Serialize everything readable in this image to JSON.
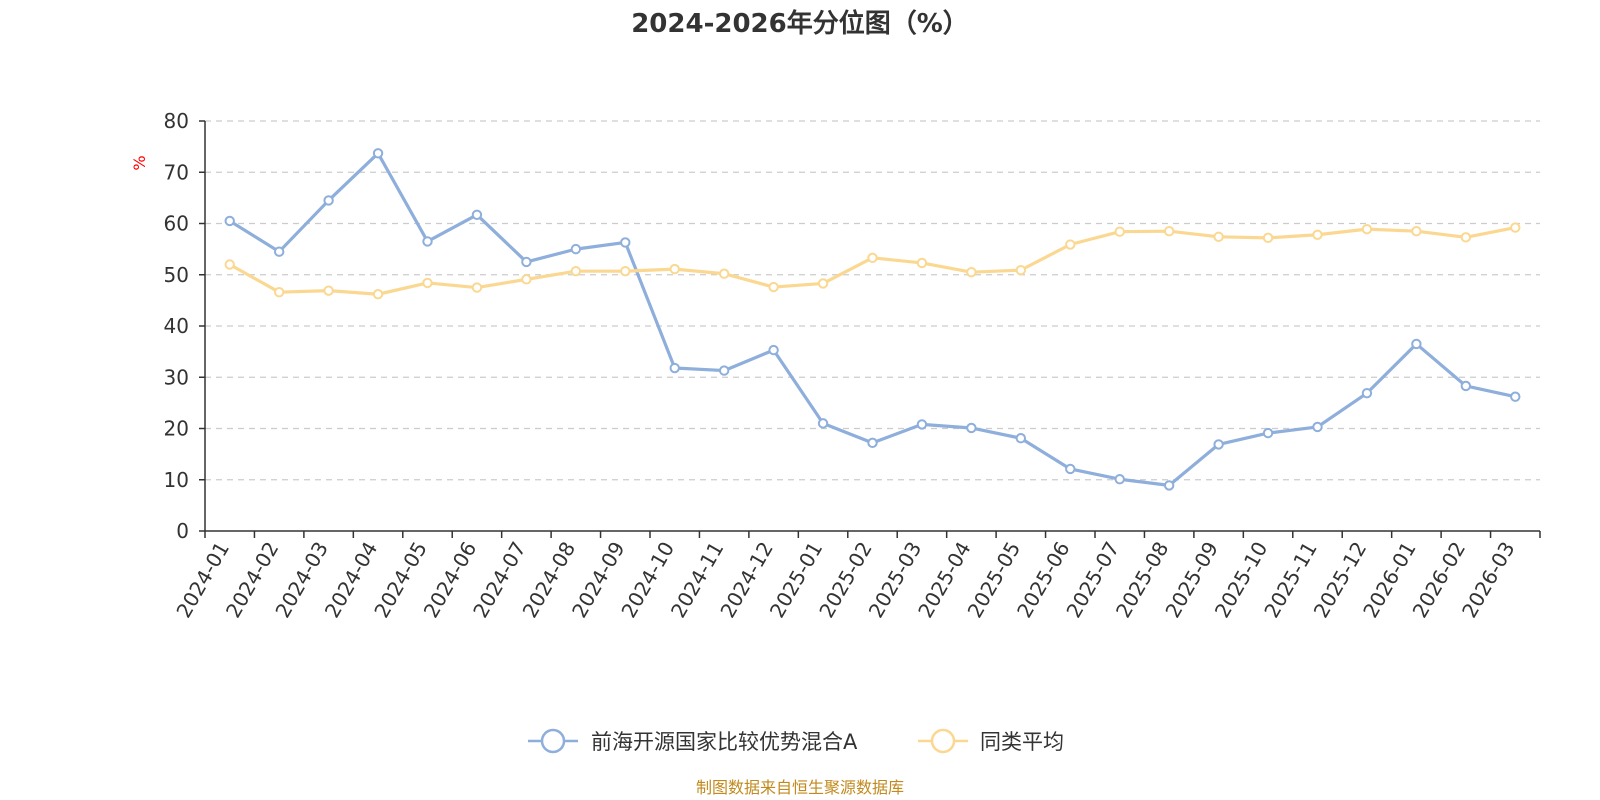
{
  "chart_data": {
    "type": "line",
    "title": "2024-2026年分位图（%）",
    "ylabel": "%",
    "xlabel": "",
    "ylim": [
      0,
      80
    ],
    "yticks": [
      0,
      10,
      20,
      30,
      40,
      50,
      60,
      70,
      80
    ],
    "grid": true,
    "legend_position": "bottom-center",
    "categories": [
      "2024-01",
      "2024-02",
      "2024-03",
      "2024-04",
      "2024-05",
      "2024-06",
      "2024-07",
      "2024-08",
      "2024-09",
      "2024-10",
      "2024-11",
      "2024-12",
      "2025-01",
      "2025-02",
      "2025-03",
      "2025-04",
      "2025-05",
      "2025-06",
      "2025-07",
      "2025-08",
      "2025-09",
      "2025-10",
      "2025-11",
      "2025-12",
      "2026-01",
      "2026-02",
      "2026-03"
    ],
    "series": [
      {
        "name": "前海开源国家比较优势混合A",
        "color": "#8eaedb",
        "values": [
          60.5,
          54.5,
          64.5,
          73.7,
          56.5,
          61.7,
          52.5,
          55.0,
          56.3,
          31.8,
          31.3,
          35.3,
          21.0,
          17.2,
          20.8,
          20.1,
          18.1,
          12.1,
          10.1,
          8.9,
          16.9,
          19.1,
          20.3,
          26.9,
          36.5,
          28.3,
          26.2
        ]
      },
      {
        "name": "同类平均",
        "color": "#fbd891",
        "values": [
          52.0,
          46.6,
          46.9,
          46.2,
          48.4,
          47.5,
          49.1,
          50.7,
          50.7,
          51.1,
          50.2,
          47.6,
          48.3,
          53.3,
          52.3,
          50.5,
          50.9,
          55.9,
          58.4,
          58.5,
          57.4,
          57.2,
          57.8,
          58.9,
          58.5,
          57.3,
          59.2
        ]
      }
    ]
  },
  "source_note": "制图数据来自恒生聚源数据库"
}
